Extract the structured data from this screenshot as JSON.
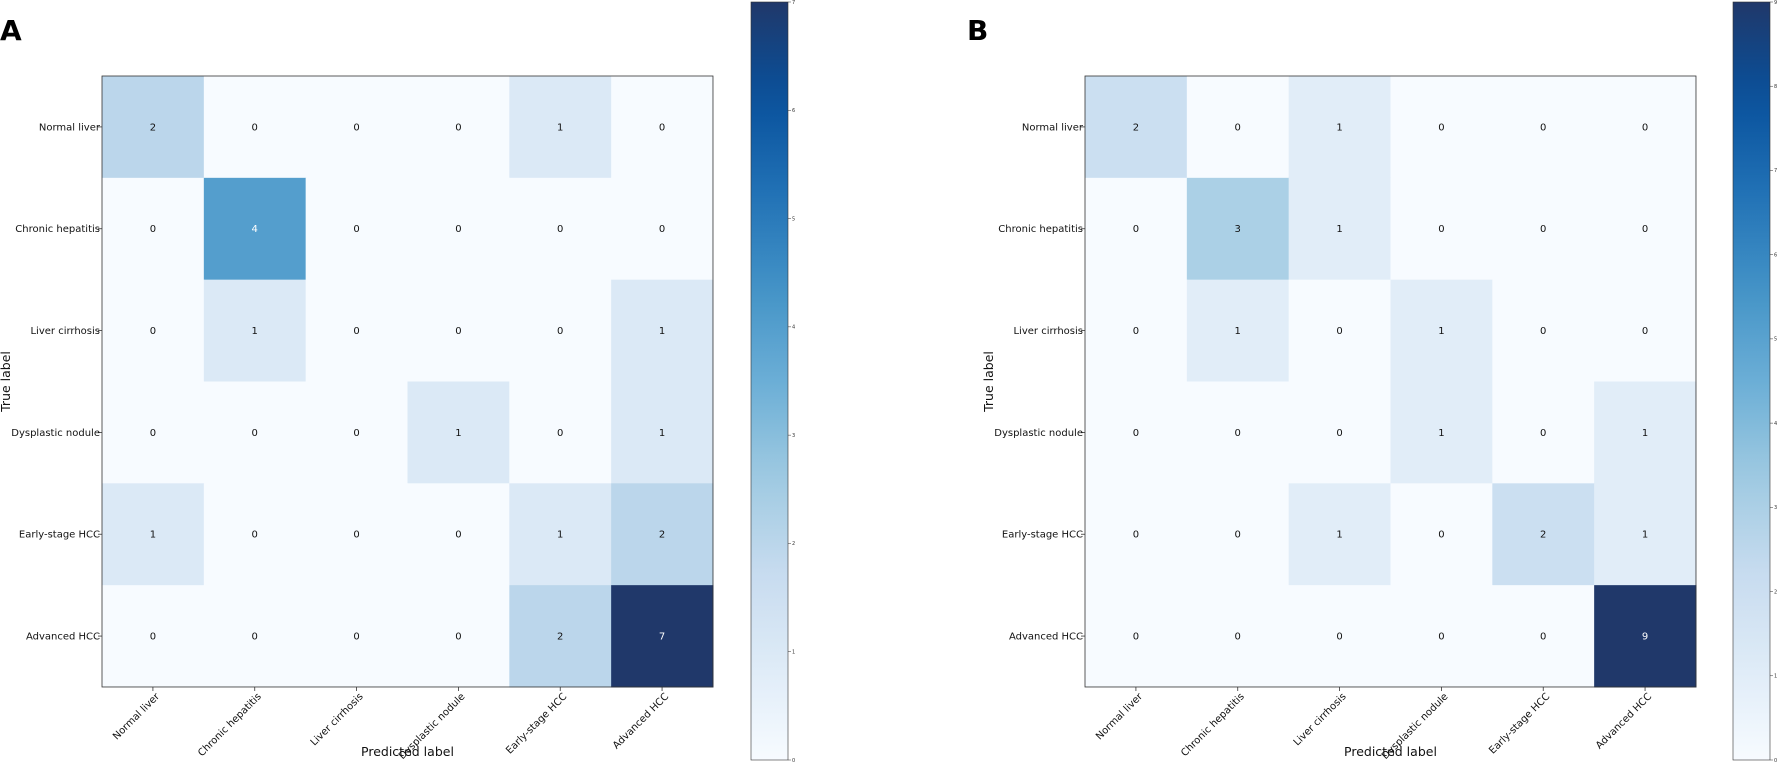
{
  "chart_data": [
    {
      "type": "heatmap",
      "panel": "A",
      "xlabel": "Predicted label",
      "ylabel": "True label",
      "categories": [
        "Normal liver",
        "Chronic hepatitis",
        "Liver cirrhosis",
        "Dysplastic nodule",
        "Early-stage HCC",
        "Advanced HCC"
      ],
      "matrix": [
        [
          2,
          0,
          0,
          0,
          1,
          0
        ],
        [
          0,
          4,
          0,
          0,
          0,
          0
        ],
        [
          0,
          1,
          0,
          0,
          0,
          1
        ],
        [
          0,
          0,
          0,
          1,
          0,
          1
        ],
        [
          1,
          0,
          0,
          0,
          1,
          2
        ],
        [
          0,
          0,
          0,
          0,
          2,
          7
        ]
      ],
      "colorbar": {
        "min": 0,
        "max": 7,
        "ticks": [
          "0",
          "1",
          "2",
          "3",
          "4",
          "5",
          "6",
          "7"
        ]
      }
    },
    {
      "type": "heatmap",
      "panel": "B",
      "xlabel": "Predicted label",
      "ylabel": "True label",
      "categories": [
        "Normal liver",
        "Chronic hepatitis",
        "Liver cirrhosis",
        "Dysplastic nodule",
        "Early-stage HCC",
        "Advanced HCC"
      ],
      "matrix": [
        [
          2,
          0,
          1,
          0,
          0,
          0
        ],
        [
          0,
          3,
          1,
          0,
          0,
          0
        ],
        [
          0,
          1,
          0,
          1,
          0,
          0
        ],
        [
          0,
          0,
          0,
          1,
          0,
          1
        ],
        [
          0,
          0,
          1,
          0,
          2,
          1
        ],
        [
          0,
          0,
          0,
          0,
          0,
          9
        ]
      ],
      "colorbar": {
        "min": 0,
        "max": 9,
        "ticks": [
          "0",
          "1",
          "2",
          "3",
          "4",
          "5",
          "6",
          "7",
          "8",
          "9"
        ]
      }
    }
  ]
}
